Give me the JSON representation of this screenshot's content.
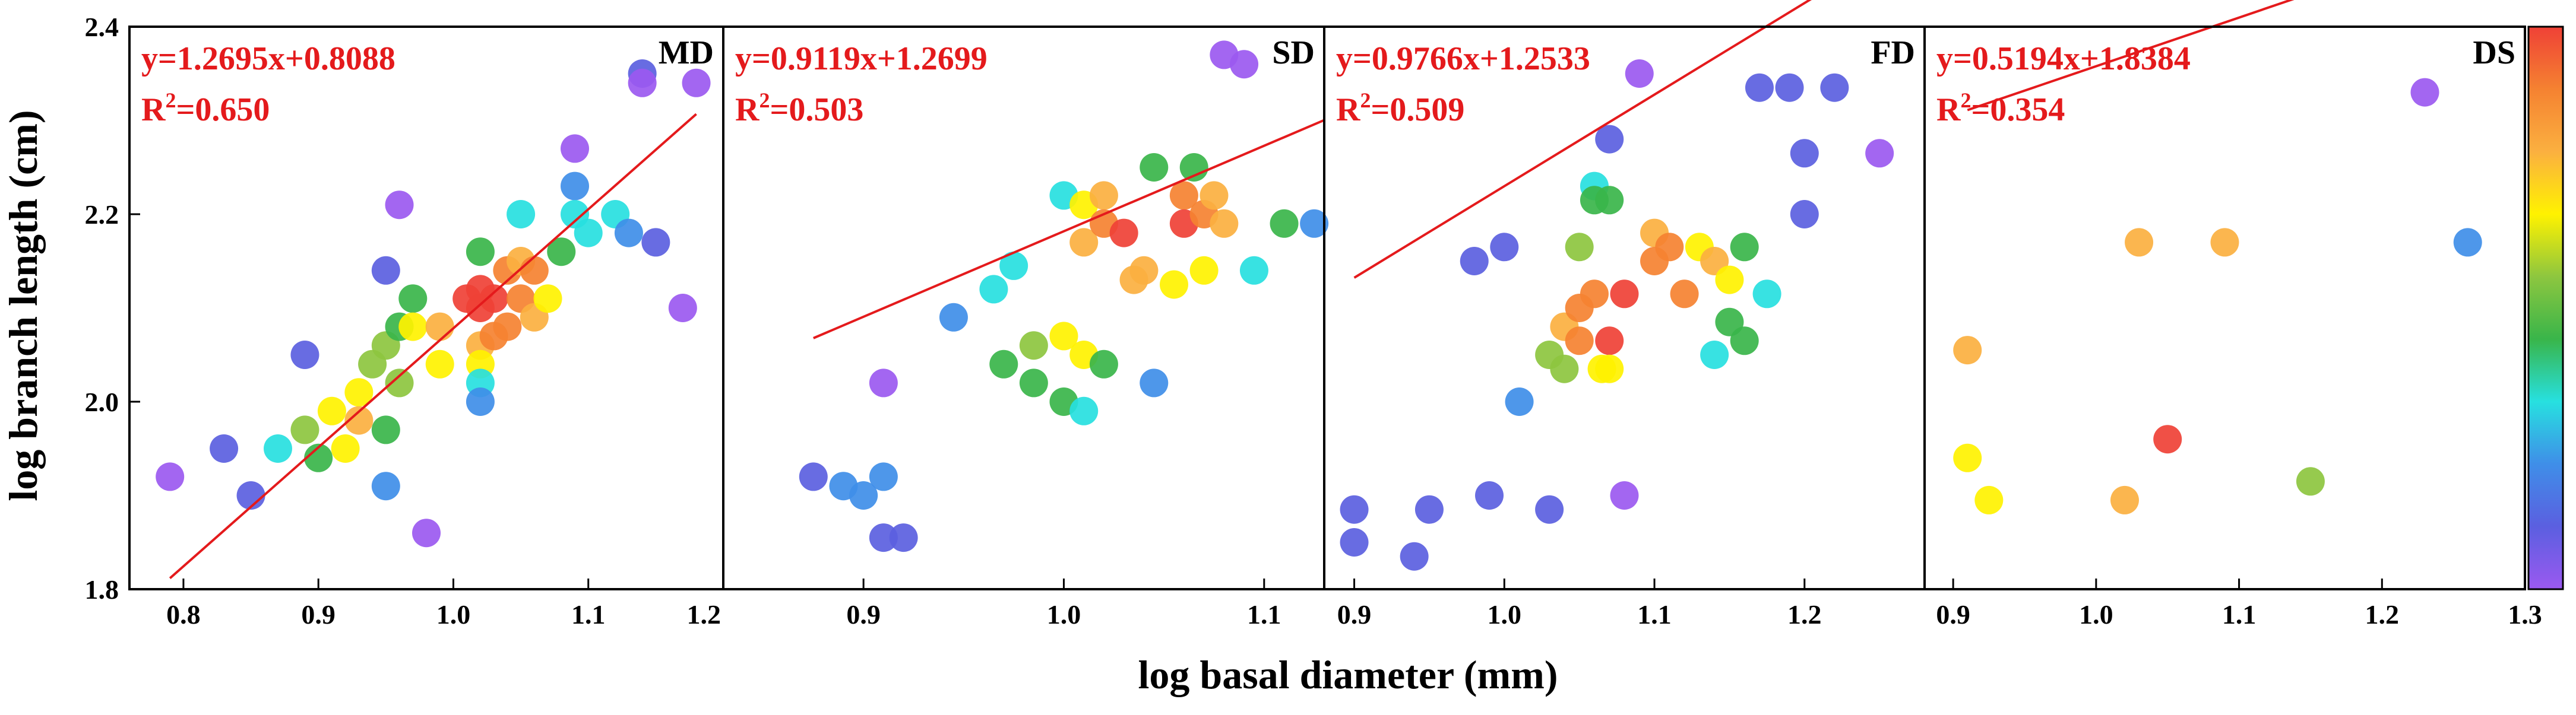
{
  "figure": {
    "xlabel": "log basal diameter (mm)",
    "ylabel": "log branch length (cm)",
    "ylim": [
      1.8,
      2.4
    ],
    "yticks": [
      "1.8",
      "2.0",
      "2.2",
      "2.4"
    ],
    "colorbar_colors": [
      "#ef4136",
      "#f58231",
      "#fbb040",
      "#fff200",
      "#8dc63f",
      "#39b54a",
      "#27e0e0",
      "#3f8ee8",
      "#5b5fe0",
      "#9b59f0"
    ],
    "fit_line_color": "#e41a1c"
  },
  "chart_data": [
    {
      "type": "scatter",
      "label": "MD",
      "equation": "y=1.2695x+0.8088",
      "r2_prefix": "R",
      "r2_sup": "2",
      "r2_value": "=0.650",
      "xlim": [
        0.76,
        1.2
      ],
      "ylim": [
        1.8,
        2.4
      ],
      "xticks": [
        "0.8",
        "0.9",
        "1.0",
        "1.1",
        "1.2"
      ],
      "slope": 1.2695,
      "intercept": 0.8088,
      "fit_x": [
        0.79,
        1.18
      ],
      "points": [
        {
          "x": 0.79,
          "y": 1.92,
          "c": "#9b59f0"
        },
        {
          "x": 0.83,
          "y": 1.95,
          "c": "#5b5fe0"
        },
        {
          "x": 0.85,
          "y": 1.9,
          "c": "#5b5fe0"
        },
        {
          "x": 0.87,
          "y": 1.95,
          "c": "#27e0e0"
        },
        {
          "x": 0.89,
          "y": 2.05,
          "c": "#5b5fe0"
        },
        {
          "x": 0.89,
          "y": 1.97,
          "c": "#8dc63f"
        },
        {
          "x": 0.9,
          "y": 1.94,
          "c": "#39b54a"
        },
        {
          "x": 0.91,
          "y": 1.99,
          "c": "#fff200"
        },
        {
          "x": 0.92,
          "y": 1.95,
          "c": "#fff200"
        },
        {
          "x": 0.93,
          "y": 2.01,
          "c": "#fff200"
        },
        {
          "x": 0.93,
          "y": 1.98,
          "c": "#fbb040"
        },
        {
          "x": 0.94,
          "y": 2.04,
          "c": "#8dc63f"
        },
        {
          "x": 0.95,
          "y": 2.14,
          "c": "#5b5fe0"
        },
        {
          "x": 0.95,
          "y": 2.06,
          "c": "#8dc63f"
        },
        {
          "x": 0.95,
          "y": 1.97,
          "c": "#39b54a"
        },
        {
          "x": 0.95,
          "y": 1.91,
          "c": "#3f8ee8"
        },
        {
          "x": 0.96,
          "y": 2.21,
          "c": "#9b59f0"
        },
        {
          "x": 0.96,
          "y": 2.08,
          "c": "#39b54a"
        },
        {
          "x": 0.96,
          "y": 2.02,
          "c": "#8dc63f"
        },
        {
          "x": 0.97,
          "y": 2.11,
          "c": "#39b54a"
        },
        {
          "x": 0.97,
          "y": 2.08,
          "c": "#fff200"
        },
        {
          "x": 0.98,
          "y": 1.86,
          "c": "#9b59f0"
        },
        {
          "x": 0.99,
          "y": 2.08,
          "c": "#fbb040"
        },
        {
          "x": 0.99,
          "y": 2.04,
          "c": "#fff200"
        },
        {
          "x": 1.01,
          "y": 2.11,
          "c": "#ef4136"
        },
        {
          "x": 1.02,
          "y": 2.16,
          "c": "#39b54a"
        },
        {
          "x": 1.02,
          "y": 2.12,
          "c": "#ef4136"
        },
        {
          "x": 1.02,
          "y": 2.1,
          "c": "#ef4136"
        },
        {
          "x": 1.02,
          "y": 2.06,
          "c": "#fbb040"
        },
        {
          "x": 1.02,
          "y": 2.04,
          "c": "#fff200"
        },
        {
          "x": 1.02,
          "y": 2.02,
          "c": "#27e0e0"
        },
        {
          "x": 1.02,
          "y": 2.0,
          "c": "#3f8ee8"
        },
        {
          "x": 1.03,
          "y": 2.11,
          "c": "#ef4136"
        },
        {
          "x": 1.03,
          "y": 2.07,
          "c": "#f58231"
        },
        {
          "x": 1.04,
          "y": 2.14,
          "c": "#f58231"
        },
        {
          "x": 1.04,
          "y": 2.08,
          "c": "#f58231"
        },
        {
          "x": 1.05,
          "y": 2.2,
          "c": "#27e0e0"
        },
        {
          "x": 1.05,
          "y": 2.15,
          "c": "#fbb040"
        },
        {
          "x": 1.05,
          "y": 2.11,
          "c": "#f58231"
        },
        {
          "x": 1.06,
          "y": 2.14,
          "c": "#f58231"
        },
        {
          "x": 1.06,
          "y": 2.09,
          "c": "#fbb040"
        },
        {
          "x": 1.07,
          "y": 2.11,
          "c": "#fff200"
        },
        {
          "x": 1.08,
          "y": 2.16,
          "c": "#39b54a"
        },
        {
          "x": 1.09,
          "y": 2.27,
          "c": "#9b59f0"
        },
        {
          "x": 1.09,
          "y": 2.23,
          "c": "#3f8ee8"
        },
        {
          "x": 1.09,
          "y": 2.2,
          "c": "#27e0e0"
        },
        {
          "x": 1.1,
          "y": 2.18,
          "c": "#27e0e0"
        },
        {
          "x": 1.12,
          "y": 2.2,
          "c": "#27e0e0"
        },
        {
          "x": 1.13,
          "y": 2.18,
          "c": "#3f8ee8"
        },
        {
          "x": 1.14,
          "y": 2.35,
          "c": "#5b5fe0"
        },
        {
          "x": 1.14,
          "y": 2.34,
          "c": "#9b59f0"
        },
        {
          "x": 1.15,
          "y": 2.17,
          "c": "#5b5fe0"
        },
        {
          "x": 1.17,
          "y": 2.1,
          "c": "#9b59f0"
        },
        {
          "x": 1.18,
          "y": 2.34,
          "c": "#9b59f0"
        }
      ]
    },
    {
      "type": "scatter",
      "label": "SD",
      "equation": "y=0.9119x+1.2699",
      "r2_prefix": "R",
      "r2_sup": "2",
      "r2_value": "=0.503",
      "xlim": [
        0.83,
        1.13
      ],
      "ylim": [
        1.8,
        2.4
      ],
      "xticks": [
        "0.9",
        "1.0",
        "1.1"
      ],
      "slope": 0.9119,
      "intercept": 1.2699,
      "fit_x": [
        0.875,
        1.13
      ],
      "points": [
        {
          "x": 0.875,
          "y": 1.92,
          "c": "#5b5fe0"
        },
        {
          "x": 0.89,
          "y": 1.91,
          "c": "#3f8ee8"
        },
        {
          "x": 0.9,
          "y": 1.9,
          "c": "#3f8ee8"
        },
        {
          "x": 0.91,
          "y": 1.92,
          "c": "#3f8ee8"
        },
        {
          "x": 0.91,
          "y": 1.855,
          "c": "#5b5fe0"
        },
        {
          "x": 0.92,
          "y": 1.855,
          "c": "#5b5fe0"
        },
        {
          "x": 0.91,
          "y": 2.02,
          "c": "#9b59f0"
        },
        {
          "x": 0.945,
          "y": 2.09,
          "c": "#3f8ee8"
        },
        {
          "x": 0.965,
          "y": 2.12,
          "c": "#27e0e0"
        },
        {
          "x": 0.975,
          "y": 2.145,
          "c": "#27e0e0"
        },
        {
          "x": 0.97,
          "y": 2.04,
          "c": "#39b54a"
        },
        {
          "x": 0.985,
          "y": 2.06,
          "c": "#8dc63f"
        },
        {
          "x": 0.985,
          "y": 2.02,
          "c": "#39b54a"
        },
        {
          "x": 1.0,
          "y": 2.22,
          "c": "#27e0e0"
        },
        {
          "x": 1.0,
          "y": 2.07,
          "c": "#fff200"
        },
        {
          "x": 1.0,
          "y": 2.0,
          "c": "#39b54a"
        },
        {
          "x": 1.01,
          "y": 2.21,
          "c": "#fff200"
        },
        {
          "x": 1.01,
          "y": 2.17,
          "c": "#fbb040"
        },
        {
          "x": 1.01,
          "y": 2.05,
          "c": "#fff200"
        },
        {
          "x": 1.01,
          "y": 1.99,
          "c": "#27e0e0"
        },
        {
          "x": 1.02,
          "y": 2.22,
          "c": "#fbb040"
        },
        {
          "x": 1.02,
          "y": 2.19,
          "c": "#f58231"
        },
        {
          "x": 1.02,
          "y": 2.04,
          "c": "#39b54a"
        },
        {
          "x": 1.03,
          "y": 2.18,
          "c": "#ef4136"
        },
        {
          "x": 1.035,
          "y": 2.13,
          "c": "#fbb040"
        },
        {
          "x": 1.04,
          "y": 2.14,
          "c": "#fbb040"
        },
        {
          "x": 1.045,
          "y": 2.25,
          "c": "#39b54a"
        },
        {
          "x": 1.045,
          "y": 2.02,
          "c": "#3f8ee8"
        },
        {
          "x": 1.055,
          "y": 2.125,
          "c": "#fff200"
        },
        {
          "x": 1.06,
          "y": 2.22,
          "c": "#f58231"
        },
        {
          "x": 1.06,
          "y": 2.19,
          "c": "#ef4136"
        },
        {
          "x": 1.065,
          "y": 2.25,
          "c": "#39b54a"
        },
        {
          "x": 1.07,
          "y": 2.2,
          "c": "#f58231"
        },
        {
          "x": 1.07,
          "y": 2.14,
          "c": "#fff200"
        },
        {
          "x": 1.075,
          "y": 2.22,
          "c": "#fbb040"
        },
        {
          "x": 1.08,
          "y": 2.19,
          "c": "#fbb040"
        },
        {
          "x": 1.08,
          "y": 2.37,
          "c": "#9b59f0"
        },
        {
          "x": 1.09,
          "y": 2.36,
          "c": "#9b59f0"
        },
        {
          "x": 1.095,
          "y": 2.14,
          "c": "#27e0e0"
        },
        {
          "x": 1.11,
          "y": 2.19,
          "c": "#39b54a"
        },
        {
          "x": 1.125,
          "y": 2.19,
          "c": "#3f8ee8"
        }
      ]
    },
    {
      "type": "scatter",
      "label": "FD",
      "equation": "y=0.9766x+1.2533",
      "r2_prefix": "R",
      "r2_sup": "2",
      "r2_value": "=0.509",
      "xlim": [
        0.88,
        1.28
      ],
      "ylim": [
        1.8,
        2.4
      ],
      "xticks": [
        "0.9",
        "1.0",
        "1.1",
        "1.2"
      ],
      "slope": 0.9766,
      "intercept": 1.2533,
      "fit_x": [
        0.9,
        1.25
      ],
      "points": [
        {
          "x": 0.9,
          "y": 1.885,
          "c": "#5b5fe0"
        },
        {
          "x": 0.9,
          "y": 1.85,
          "c": "#5b5fe0"
        },
        {
          "x": 0.94,
          "y": 1.835,
          "c": "#5b5fe0"
        },
        {
          "x": 0.95,
          "y": 1.885,
          "c": "#5b5fe0"
        },
        {
          "x": 0.98,
          "y": 2.15,
          "c": "#5b5fe0"
        },
        {
          "x": 0.99,
          "y": 1.9,
          "c": "#5b5fe0"
        },
        {
          "x": 1.0,
          "y": 2.165,
          "c": "#5b5fe0"
        },
        {
          "x": 1.01,
          "y": 2.0,
          "c": "#3f8ee8"
        },
        {
          "x": 1.03,
          "y": 1.885,
          "c": "#5b5fe0"
        },
        {
          "x": 1.03,
          "y": 2.05,
          "c": "#8dc63f"
        },
        {
          "x": 1.04,
          "y": 2.08,
          "c": "#fbb040"
        },
        {
          "x": 1.04,
          "y": 2.035,
          "c": "#8dc63f"
        },
        {
          "x": 1.05,
          "y": 2.165,
          "c": "#8dc63f"
        },
        {
          "x": 1.05,
          "y": 2.1,
          "c": "#f58231"
        },
        {
          "x": 1.05,
          "y": 2.065,
          "c": "#f58231"
        },
        {
          "x": 1.06,
          "y": 2.23,
          "c": "#27e0e0"
        },
        {
          "x": 1.06,
          "y": 2.215,
          "c": "#39b54a"
        },
        {
          "x": 1.06,
          "y": 2.115,
          "c": "#f58231"
        },
        {
          "x": 1.065,
          "y": 2.035,
          "c": "#fff200"
        },
        {
          "x": 1.07,
          "y": 2.28,
          "c": "#5b5fe0"
        },
        {
          "x": 1.07,
          "y": 2.215,
          "c": "#39b54a"
        },
        {
          "x": 1.07,
          "y": 2.065,
          "c": "#ef4136"
        },
        {
          "x": 1.07,
          "y": 2.035,
          "c": "#fff200"
        },
        {
          "x": 1.08,
          "y": 2.115,
          "c": "#ef4136"
        },
        {
          "x": 1.08,
          "y": 1.9,
          "c": "#9b59f0"
        },
        {
          "x": 1.09,
          "y": 2.35,
          "c": "#9b59f0"
        },
        {
          "x": 1.1,
          "y": 2.18,
          "c": "#fbb040"
        },
        {
          "x": 1.1,
          "y": 2.15,
          "c": "#f58231"
        },
        {
          "x": 1.11,
          "y": 2.165,
          "c": "#f58231"
        },
        {
          "x": 1.12,
          "y": 2.115,
          "c": "#f58231"
        },
        {
          "x": 1.13,
          "y": 2.165,
          "c": "#fff200"
        },
        {
          "x": 1.14,
          "y": 2.15,
          "c": "#fbb040"
        },
        {
          "x": 1.14,
          "y": 2.05,
          "c": "#27e0e0"
        },
        {
          "x": 1.15,
          "y": 2.13,
          "c": "#fff200"
        },
        {
          "x": 1.15,
          "y": 2.085,
          "c": "#39b54a"
        },
        {
          "x": 1.16,
          "y": 2.165,
          "c": "#39b54a"
        },
        {
          "x": 1.16,
          "y": 2.065,
          "c": "#39b54a"
        },
        {
          "x": 1.17,
          "y": 2.335,
          "c": "#5b5fe0"
        },
        {
          "x": 1.175,
          "y": 2.115,
          "c": "#27e0e0"
        },
        {
          "x": 1.19,
          "y": 2.335,
          "c": "#5b5fe0"
        },
        {
          "x": 1.2,
          "y": 2.265,
          "c": "#5b5fe0"
        },
        {
          "x": 1.2,
          "y": 2.2,
          "c": "#5b5fe0"
        },
        {
          "x": 1.22,
          "y": 2.335,
          "c": "#5b5fe0"
        },
        {
          "x": 1.25,
          "y": 2.265,
          "c": "#9b59f0"
        }
      ]
    },
    {
      "type": "scatter",
      "label": "DS",
      "equation": "y=0.5194x+1.8384",
      "r2_prefix": "R",
      "r2_sup": "2",
      "r2_value": "=0.354",
      "xlim": [
        0.88,
        1.3
      ],
      "ylim": [
        1.8,
        2.4
      ],
      "xticks": [
        "0.9",
        "1.0",
        "1.1",
        "1.2",
        "1.3"
      ],
      "slope": 0.5194,
      "intercept": 1.8384,
      "fit_x": [
        0.91,
        1.26
      ],
      "points": [
        {
          "x": 0.91,
          "y": 2.055,
          "c": "#fbb040"
        },
        {
          "x": 0.91,
          "y": 1.94,
          "c": "#fff200"
        },
        {
          "x": 0.925,
          "y": 1.895,
          "c": "#fff200"
        },
        {
          "x": 1.02,
          "y": 1.895,
          "c": "#fbb040"
        },
        {
          "x": 1.03,
          "y": 2.17,
          "c": "#fbb040"
        },
        {
          "x": 1.05,
          "y": 1.96,
          "c": "#ef4136"
        },
        {
          "x": 1.09,
          "y": 2.17,
          "c": "#fbb040"
        },
        {
          "x": 1.15,
          "y": 1.915,
          "c": "#8dc63f"
        },
        {
          "x": 1.23,
          "y": 2.33,
          "c": "#9b59f0"
        },
        {
          "x": 1.26,
          "y": 2.17,
          "c": "#3f8ee8"
        }
      ]
    }
  ]
}
